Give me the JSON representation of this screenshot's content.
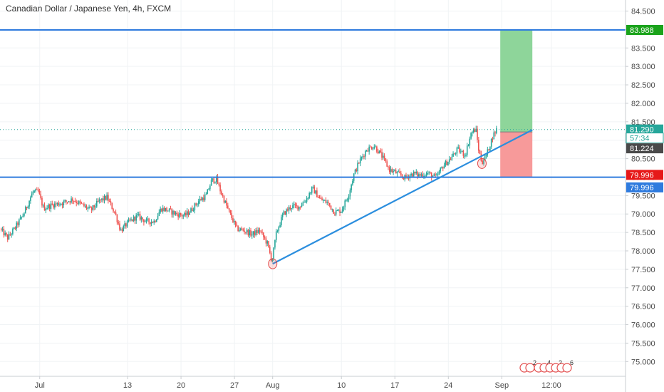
{
  "colors": {
    "up": "#26a69a",
    "down": "#ef5350",
    "level_line": "#2f7bde",
    "trend_line": "#2b8ede",
    "target_zone": "#8ed59a",
    "stop_zone": "#f79a9a",
    "price_line": "#26a69a",
    "current_badge": "#26a69a",
    "timer_badge": "#ffffff",
    "entry_badge": "#4a4a4a",
    "target_badge": "#1aa31a",
    "level_badge": "#2f7bde",
    "stop_badge": "#e61919"
  },
  "chart_data": {
    "type": "candlestick",
    "title": "Canadian Dollar / Japanese Yen, 4h, FXCM",
    "ylim": [
      74.6,
      84.8
    ],
    "y_ticks": [
      "84.500",
      "84.000",
      "83.500",
      "83.000",
      "82.500",
      "82.000",
      "81.500",
      "81.000",
      "80.500",
      "80.000",
      "79.500",
      "79.000",
      "78.500",
      "78.000",
      "77.500",
      "77.000",
      "76.500",
      "76.000",
      "75.500",
      "75.000"
    ],
    "y_tick_values": [
      84.5,
      84.0,
      83.5,
      83.0,
      82.5,
      82.0,
      81.5,
      81.0,
      80.5,
      80.0,
      79.5,
      79.0,
      78.5,
      78.0,
      77.5,
      77.0,
      76.5,
      76.0,
      75.5,
      75.0
    ],
    "x_ticks": [
      "Jul",
      "13",
      "20",
      "27",
      "Aug",
      "10",
      "17",
      "24",
      "Sep",
      "12:00"
    ],
    "x_tick_positions": [
      1.5,
      13,
      20,
      27,
      32,
      41,
      48,
      55,
      62,
      68.5
    ],
    "x_range": [
      -3.7,
      78.2
    ],
    "close_anchors": [
      [
        -3.7,
        78.6
      ],
      [
        -2.7,
        78.35
      ],
      [
        -1.8,
        78.6
      ],
      [
        -0.6,
        79.0
      ],
      [
        0.6,
        79.6
      ],
      [
        1.3,
        79.6
      ],
      [
        2.0,
        79.15
      ],
      [
        3.2,
        79.25
      ],
      [
        4.5,
        79.3
      ],
      [
        5.8,
        79.4
      ],
      [
        7.0,
        79.25
      ],
      [
        8.2,
        79.1
      ],
      [
        9.3,
        79.35
      ],
      [
        10.3,
        79.45
      ],
      [
        11.4,
        79.0
      ],
      [
        12.1,
        78.55
      ],
      [
        13.0,
        78.75
      ],
      [
        14.3,
        78.95
      ],
      [
        15.4,
        78.8
      ],
      [
        16.5,
        78.8
      ],
      [
        17.4,
        79.15
      ],
      [
        18.3,
        79.1
      ],
      [
        19.4,
        79.0
      ],
      [
        20.5,
        78.95
      ],
      [
        21.3,
        79.1
      ],
      [
        22.3,
        79.35
      ],
      [
        23.3,
        79.5
      ],
      [
        24.0,
        79.9
      ],
      [
        24.6,
        79.95
      ],
      [
        25.3,
        79.55
      ],
      [
        26.3,
        79.05
      ],
      [
        27.3,
        78.6
      ],
      [
        28.3,
        78.55
      ],
      [
        29.3,
        78.45
      ],
      [
        30.3,
        78.55
      ],
      [
        31.3,
        78.2
      ],
      [
        31.9,
        77.72
      ],
      [
        32.5,
        78.5
      ],
      [
        33.4,
        79.0
      ],
      [
        34.4,
        79.2
      ],
      [
        35.5,
        79.2
      ],
      [
        36.4,
        79.4
      ],
      [
        37.2,
        79.7
      ],
      [
        38.2,
        79.4
      ],
      [
        39.2,
        79.3
      ],
      [
        40.1,
        79.05
      ],
      [
        41.0,
        79.1
      ],
      [
        41.9,
        79.5
      ],
      [
        42.6,
        80.05
      ],
      [
        43.3,
        80.4
      ],
      [
        44.3,
        80.75
      ],
      [
        45.3,
        80.85
      ],
      [
        46.2,
        80.6
      ],
      [
        47.3,
        80.2
      ],
      [
        48.3,
        80.1
      ],
      [
        49.3,
        79.98
      ],
      [
        50.4,
        80.1
      ],
      [
        51.2,
        80.05
      ],
      [
        52.3,
        80.1
      ],
      [
        53.4,
        79.98
      ],
      [
        54.3,
        80.3
      ],
      [
        55.3,
        80.5
      ],
      [
        56.2,
        80.75
      ],
      [
        57.2,
        80.6
      ],
      [
        58.0,
        81.2
      ],
      [
        58.6,
        81.3
      ],
      [
        59.0,
        80.7
      ],
      [
        59.4,
        80.4
      ],
      [
        60.0,
        80.6
      ],
      [
        60.8,
        81.1
      ],
      [
        61.3,
        81.29
      ]
    ],
    "levels": [
      {
        "label": "83.989",
        "value": 83.989
      },
      {
        "label": "79.996",
        "value": 79.996
      }
    ],
    "trend_line": {
      "from": [
        32.0,
        77.65
      ],
      "to": [
        66.0,
        81.28
      ]
    },
    "position": {
      "start_day": 61.8,
      "end_day": 66.0,
      "entry": 81.224,
      "target": 83.988,
      "stop": 79.996
    },
    "last_price": 81.29,
    "price_badges": [
      {
        "label": "83.989",
        "value": 83.989,
        "kind": "level"
      },
      {
        "label": "83.988",
        "value": 83.988,
        "kind": "target"
      },
      {
        "label": "81.290",
        "value": 81.29,
        "kind": "current"
      },
      {
        "label": "57:34",
        "value": 81.06,
        "kind": "timer"
      },
      {
        "label": "81.224",
        "value": 80.78,
        "kind": "entry"
      },
      {
        "label": "79.996",
        "value": 80.06,
        "kind": "stop"
      },
      {
        "label": "79.996",
        "value": 79.72,
        "kind": "level"
      }
    ],
    "pivot_marks": [
      {
        "day": 32.0,
        "price": 77.65
      },
      {
        "day": 59.4,
        "price": 80.37
      }
    ],
    "event_icons": [
      "2",
      "4",
      "2",
      "6"
    ]
  }
}
